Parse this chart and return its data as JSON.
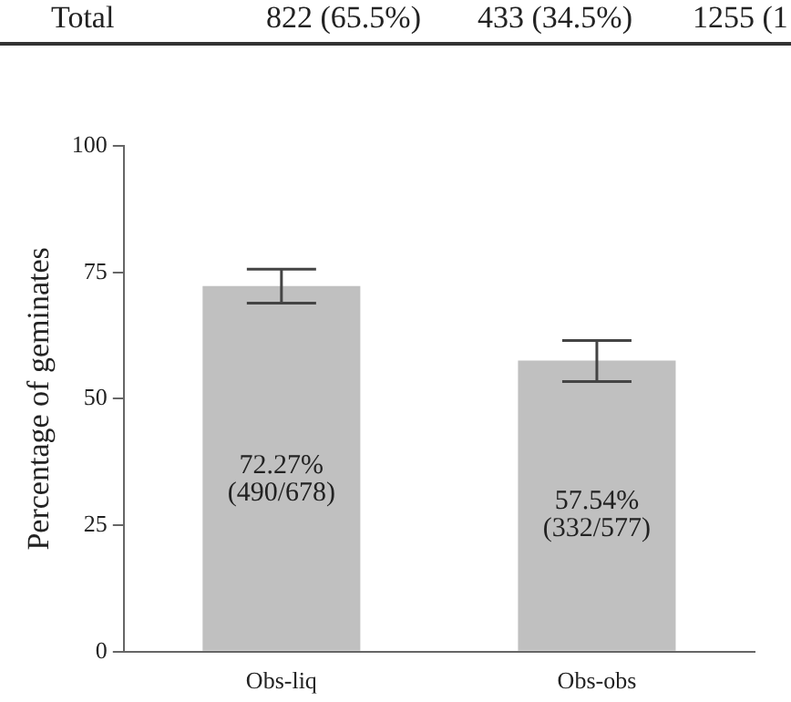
{
  "chart_data": {
    "type": "bar",
    "ylabel": "Percentage of geminates",
    "categories": [
      "Obs-liq",
      "Obs-obs"
    ],
    "values": [
      72.27,
      57.54
    ],
    "errors": [
      [
        68.9,
        75.6
      ],
      [
        53.4,
        61.5
      ]
    ],
    "value_labels": [
      "72.27%\n(490/678)",
      "57.54%\n(332/577)"
    ],
    "color": "#c0c0c0",
    "ylim": [
      0,
      100
    ],
    "yticks": [
      0,
      25,
      50,
      75,
      100
    ],
    "grid": false,
    "legend": false,
    "annotations": [
      "Total",
      "822 (65.5%)",
      "433 (34.5%)",
      "1255 (1"
    ]
  }
}
